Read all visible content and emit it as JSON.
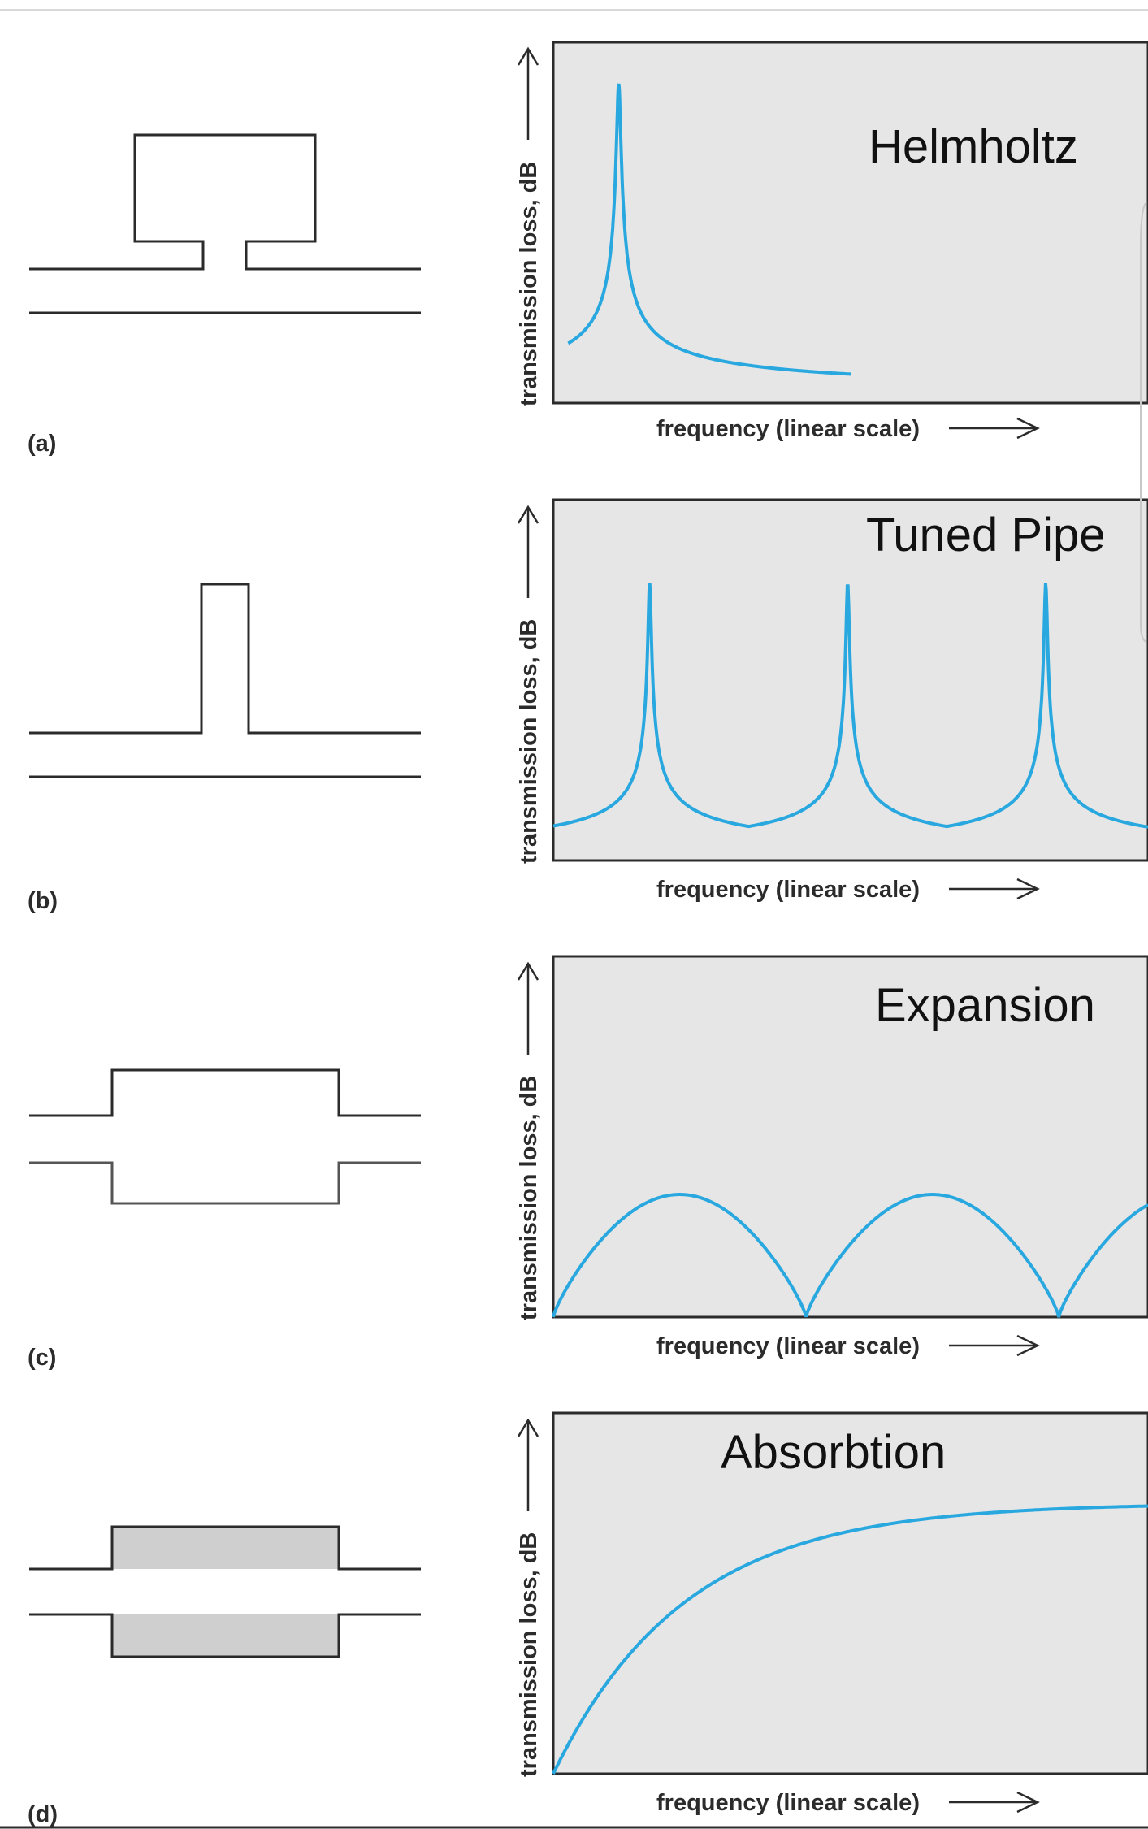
{
  "panels": [
    {
      "letter": "(a)",
      "title": "Helmholtz",
      "ylabel": "transmission loss, dB",
      "xlabel": "frequency (linear scale)",
      "curve": "helmholtz"
    },
    {
      "letter": "(b)",
      "title": "Tuned Pipe",
      "ylabel": "transmission loss, dB",
      "xlabel": "frequency (linear scale)",
      "curve": "tuned-pipe"
    },
    {
      "letter": "(c)",
      "title": "Expansion",
      "ylabel": "transmission loss, dB",
      "xlabel": "frequency (linear scale)",
      "curve": "expansion"
    },
    {
      "letter": "(d)",
      "title": "Absorbtion",
      "ylabel": "transmission loss, dB",
      "xlabel": "frequency (linear scale)",
      "curve": "absorption"
    }
  ],
  "colors": {
    "curve": "#29a8e0",
    "plot_background": "#e6e6e6",
    "outline": "#2b2b2b",
    "absorber_fill": "#cfcfcf"
  }
}
